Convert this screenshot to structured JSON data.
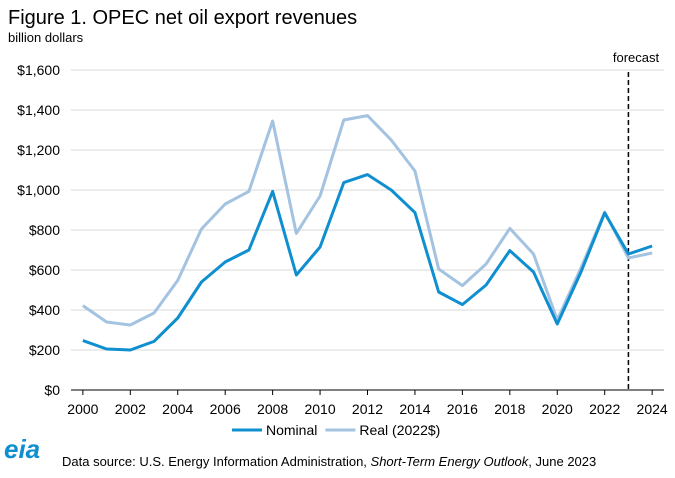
{
  "chart_data": {
    "type": "line",
    "title": "Figure 1. OPEC net oil export revenues",
    "subtitle": "billion dollars",
    "x": [
      2000,
      2001,
      2002,
      2003,
      2004,
      2005,
      2006,
      2007,
      2008,
      2009,
      2010,
      2011,
      2012,
      2013,
      2014,
      2015,
      2016,
      2017,
      2018,
      2019,
      2020,
      2021,
      2022,
      2023,
      2024
    ],
    "series": [
      {
        "name": "Nominal",
        "color": "#0f8fcf",
        "values": [
          247,
          205,
          200,
          243,
          360,
          540,
          640,
          700,
          993,
          575,
          715,
          1037,
          1077,
          1000,
          887,
          490,
          427,
          525,
          697,
          590,
          330,
          590,
          885,
          680,
          720
        ]
      },
      {
        "name": "Real (2022$)",
        "color": "#a3c3e1",
        "values": [
          422,
          340,
          325,
          385,
          548,
          805,
          930,
          993,
          1345,
          783,
          970,
          1350,
          1372,
          1250,
          1095,
          605,
          522,
          630,
          808,
          680,
          350,
          610,
          890,
          660,
          685
        ]
      }
    ],
    "xlim": [
      1999.5,
      2024.5
    ],
    "xticks": [
      2000,
      2002,
      2004,
      2006,
      2008,
      2010,
      2012,
      2014,
      2016,
      2018,
      2020,
      2022,
      2024
    ],
    "ylim": [
      0,
      1600
    ],
    "yticks": [
      {
        "value": 0,
        "label": "$0"
      },
      {
        "value": 200,
        "label": "$200"
      },
      {
        "value": 400,
        "label": "$400"
      },
      {
        "value": 600,
        "label": "$600"
      },
      {
        "value": 800,
        "label": "$800"
      },
      {
        "value": 1000,
        "label": "$1,000"
      },
      {
        "value": 1200,
        "label": "$1,200"
      },
      {
        "value": 1400,
        "label": "$1,400"
      },
      {
        "value": 1600,
        "label": "$1,600"
      }
    ],
    "grid": true,
    "legend": "bottom",
    "forecast": {
      "x": 2023,
      "label": "forecast"
    },
    "logo": "eia",
    "source": [
      "Data source: U.S. Energy Information Administration, ",
      "Short-Term Energy Outlook",
      ", June 2023"
    ]
  }
}
